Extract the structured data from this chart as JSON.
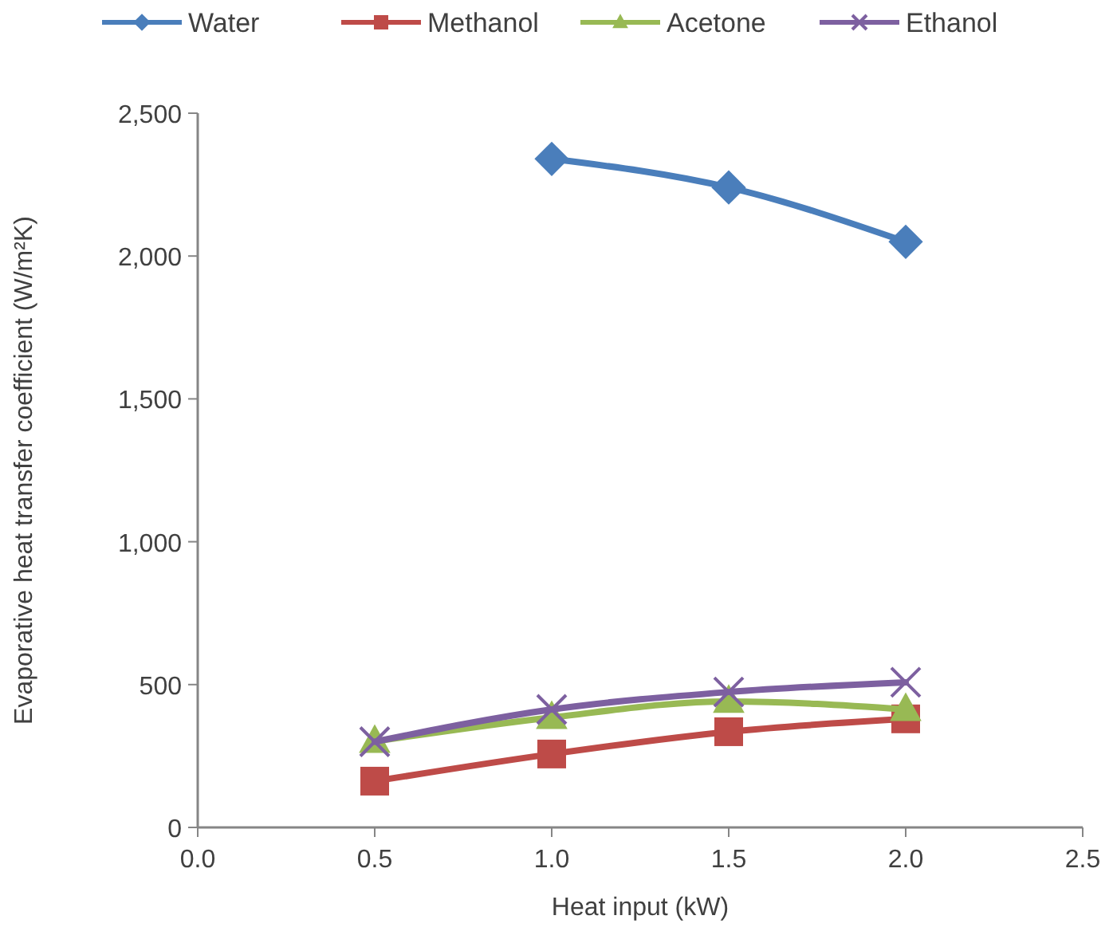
{
  "chart_data": {
    "type": "line",
    "xlabel": "Heat input (kW)",
    "ylabel": "Evaporative heat transfer coefficient (W/m²K)",
    "x": [
      0.5,
      1.0,
      1.5,
      2.0
    ],
    "series": [
      {
        "name": "Water",
        "color": "#4a7ebb",
        "marker": "diamond",
        "values": [
          null,
          2340,
          2240,
          2050
        ]
      },
      {
        "name": "Methanol",
        "color": "#be4b48",
        "marker": "square",
        "values": [
          162,
          257,
          335,
          380
        ]
      },
      {
        "name": "Acetone",
        "color": "#98b954",
        "marker": "triangle",
        "values": [
          301,
          385,
          441,
          413
        ]
      },
      {
        "name": "Ethanol",
        "color": "#7d60a0",
        "marker": "cross",
        "values": [
          300,
          413,
          474,
          508
        ]
      }
    ],
    "xlim": [
      0,
      2.5
    ],
    "xticks": [
      {
        "value": 0,
        "label": "0.0"
      },
      {
        "value": 0.5,
        "label": "0.5"
      },
      {
        "value": 1,
        "label": "1.0"
      },
      {
        "value": 1.5,
        "label": "1.5"
      },
      {
        "value": 2,
        "label": "2.0"
      },
      {
        "value": 2.5,
        "label": "2.5"
      }
    ],
    "ylim": [
      0,
      2500
    ],
    "yticks": [
      {
        "value": 0,
        "label": "0"
      },
      {
        "value": 500,
        "label": "500"
      },
      {
        "value": 1000,
        "label": "1,000"
      },
      {
        "value": 1500,
        "label": "1,500"
      },
      {
        "value": 2000,
        "label": "2,000"
      },
      {
        "value": 2500,
        "label": "2,500"
      }
    ],
    "grid": false,
    "legend": "top",
    "line_style": "solid"
  }
}
